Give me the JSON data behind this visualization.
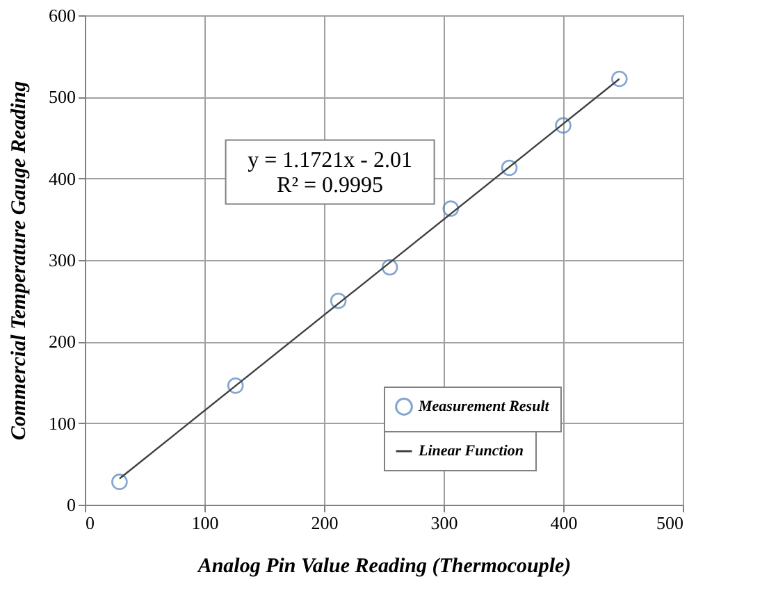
{
  "chart_data": {
    "type": "scatter",
    "xlabel": "Analog Pin Value Reading (Thermocouple)",
    "ylabel": "Commercial Temperature Gauge Reading",
    "x": [
      29,
      126,
      212,
      255,
      306,
      355,
      400,
      447
    ],
    "series": [
      {
        "name": "Measurement Result",
        "color": "#4f81bd",
        "values": [
          28,
          146,
          250,
          291,
          363,
          413,
          465,
          522
        ],
        "marker": "circle"
      },
      {
        "name": "Linear Function",
        "type": "line",
        "color": "#404040",
        "x": [
          29,
          447
        ],
        "values": [
          32,
          522
        ],
        "marker": "none"
      }
    ],
    "xlim": [
      0,
      500
    ],
    "xticks": [
      0,
      100,
      200,
      300,
      400,
      500
    ],
    "ylim": [
      0,
      600
    ],
    "yticks": [
      0,
      100,
      200,
      300,
      400,
      500,
      600
    ],
    "grid": true,
    "legend": "bottom right",
    "annotations": [
      "y = 1.1721x - 2.01",
      "R² = 0.9995"
    ]
  }
}
